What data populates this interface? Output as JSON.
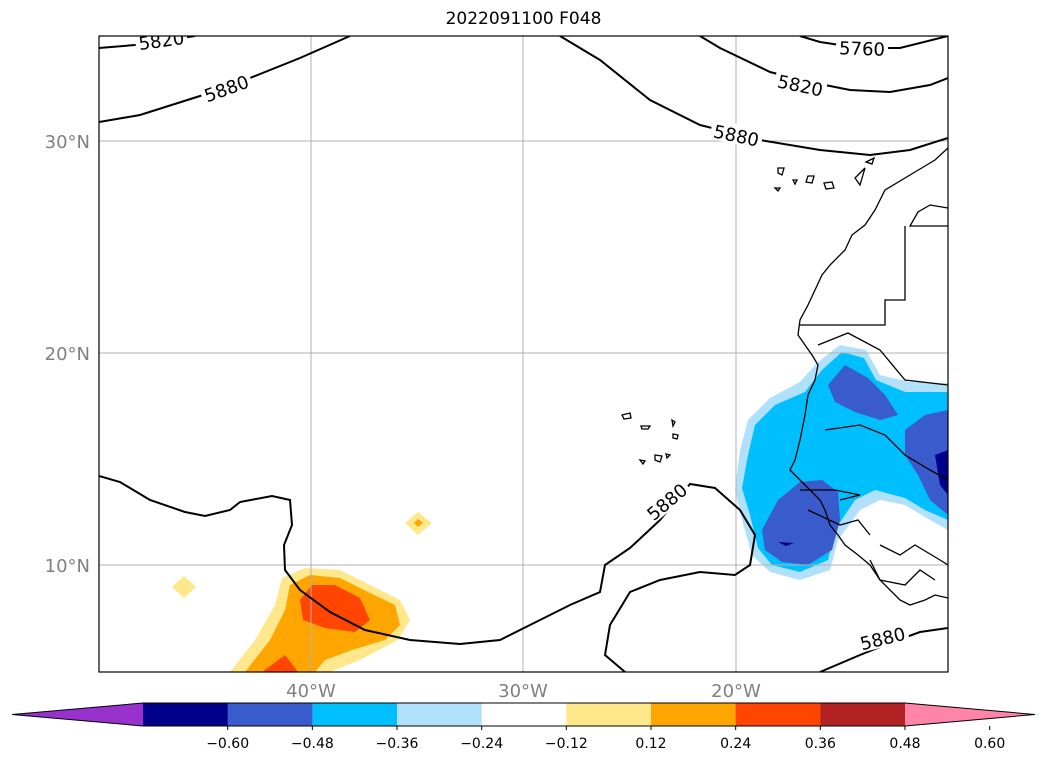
{
  "title": "2022091100 F048",
  "map": {
    "lat_labels": [
      "30°N",
      "20°N",
      "10°N"
    ],
    "lon_labels": [
      "40°W",
      "30°W",
      "20°W"
    ],
    "contour_labels": [
      "5820",
      "5880",
      "5760",
      "5820",
      "5880",
      "5880",
      "5880"
    ]
  },
  "colorbar": {
    "ticks": [
      "−0.60",
      "−0.48",
      "−0.36",
      "−0.24",
      "−0.12",
      "0.12",
      "0.24",
      "0.36",
      "0.48",
      "0.60"
    ],
    "colors": [
      "#9932cc",
      "#00008b",
      "#3a5bcc",
      "#00bfff",
      "#b0e0fa",
      "#ffffff",
      "#ffe88c",
      "#ffa500",
      "#ff4500",
      "#b22222",
      "#ff85a8"
    ]
  },
  "palette": {
    "deep_blue": "#00008b",
    "blue": "#3a5bcc",
    "cyan": "#00bfff",
    "light_blue": "#b0e0fa",
    "yellow": "#ffe88c",
    "orange": "#ffa500",
    "red_orange": "#ff4500"
  }
}
